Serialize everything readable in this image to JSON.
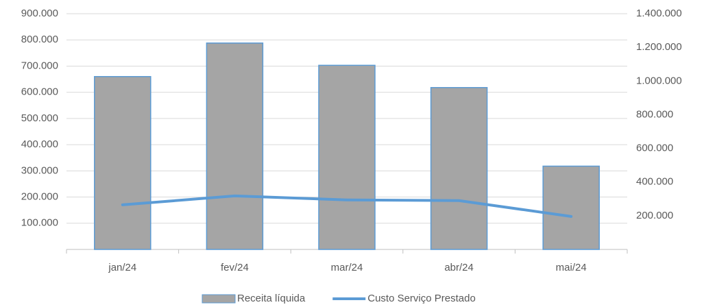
{
  "chart_data": {
    "type": "bar",
    "categories": [
      "jan/24",
      "fev/24",
      "mar/24",
      "abr/24",
      "mai/24"
    ],
    "series": [
      {
        "name": "Receita líquida",
        "type": "bar",
        "color": "#a5a5a5",
        "edge_color": "#5b9bd5",
        "values": [
          660000,
          788000,
          703000,
          618000,
          318000
        ]
      },
      {
        "name": "Custo Serviço Prestado",
        "type": "line",
        "axis": "y2",
        "color": "#5b9bd5",
        "values": [
          265000,
          318000,
          294000,
          290000,
          196000
        ]
      }
    ],
    "ylim": [
      0,
      900000
    ],
    "yticks": [
      {
        "value": 100000,
        "label": "100.000"
      },
      {
        "value": 200000,
        "label": "200.000"
      },
      {
        "value": 300000,
        "label": "300.000"
      },
      {
        "value": 400000,
        "label": "400.000"
      },
      {
        "value": 500000,
        "label": "500.000"
      },
      {
        "value": 600000,
        "label": "600.000"
      },
      {
        "value": 700000,
        "label": "700.000"
      },
      {
        "value": 800000,
        "label": "800.000"
      },
      {
        "value": 900000,
        "label": "900.000"
      }
    ],
    "y2lim": [
      0,
      1400000
    ],
    "y2ticks": [
      {
        "value": 200000,
        "label": "200.000"
      },
      {
        "value": 400000,
        "label": "400.000"
      },
      {
        "value": 600000,
        "label": "600.000"
      },
      {
        "value": 800000,
        "label": "800.000"
      },
      {
        "value": 1000000,
        "label": "1.000.000"
      },
      {
        "value": 1200000,
        "label": "1.200.000"
      },
      {
        "value": 1400000,
        "label": "1.400.000"
      }
    ],
    "grid": true,
    "legend": "bottom"
  }
}
